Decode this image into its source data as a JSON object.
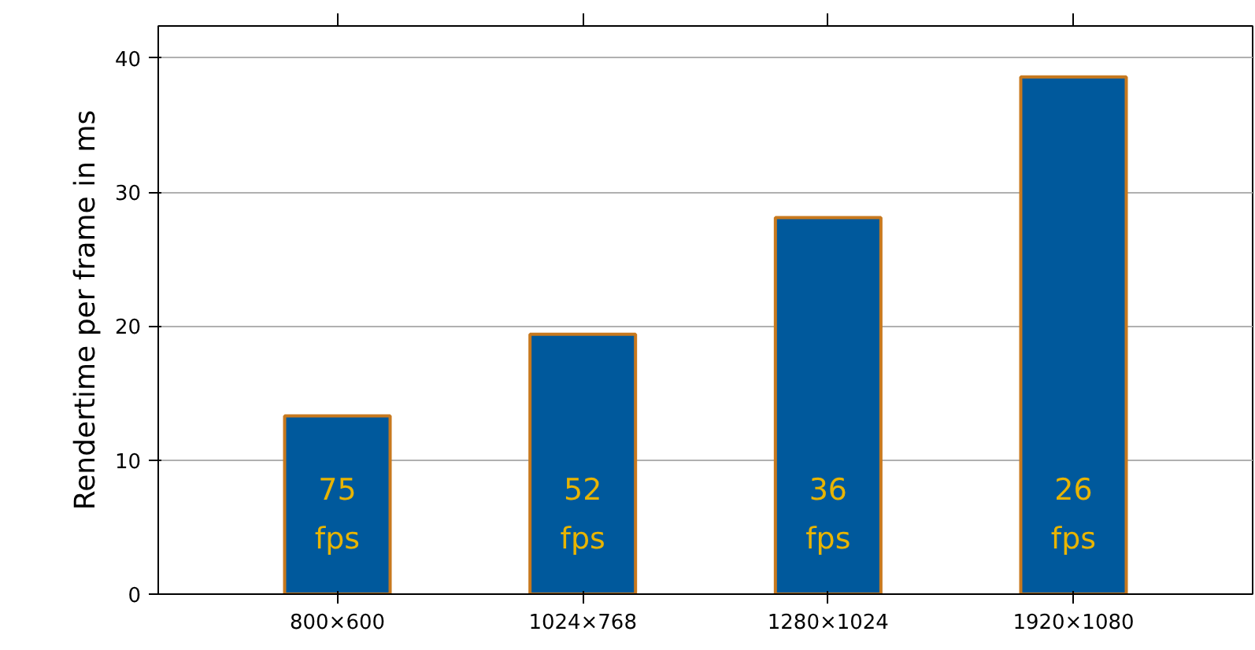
{
  "chart_data": {
    "type": "bar",
    "ylabel": "Rendertime per frame in ms",
    "categories": [
      "800×600",
      "1024×768",
      "1280×1024",
      "1920×1080"
    ],
    "series": [
      {
        "color": "#00599c",
        "values": [
          13.3,
          19.4,
          28.1,
          38.6
        ]
      }
    ],
    "annotations": [
      "75 fps",
      "52 fps",
      "36 fps",
      "26 fps"
    ],
    "ylim": [
      0,
      42.4
    ],
    "yticks": [
      0,
      10,
      20,
      30,
      40
    ],
    "grid": "y"
  }
}
